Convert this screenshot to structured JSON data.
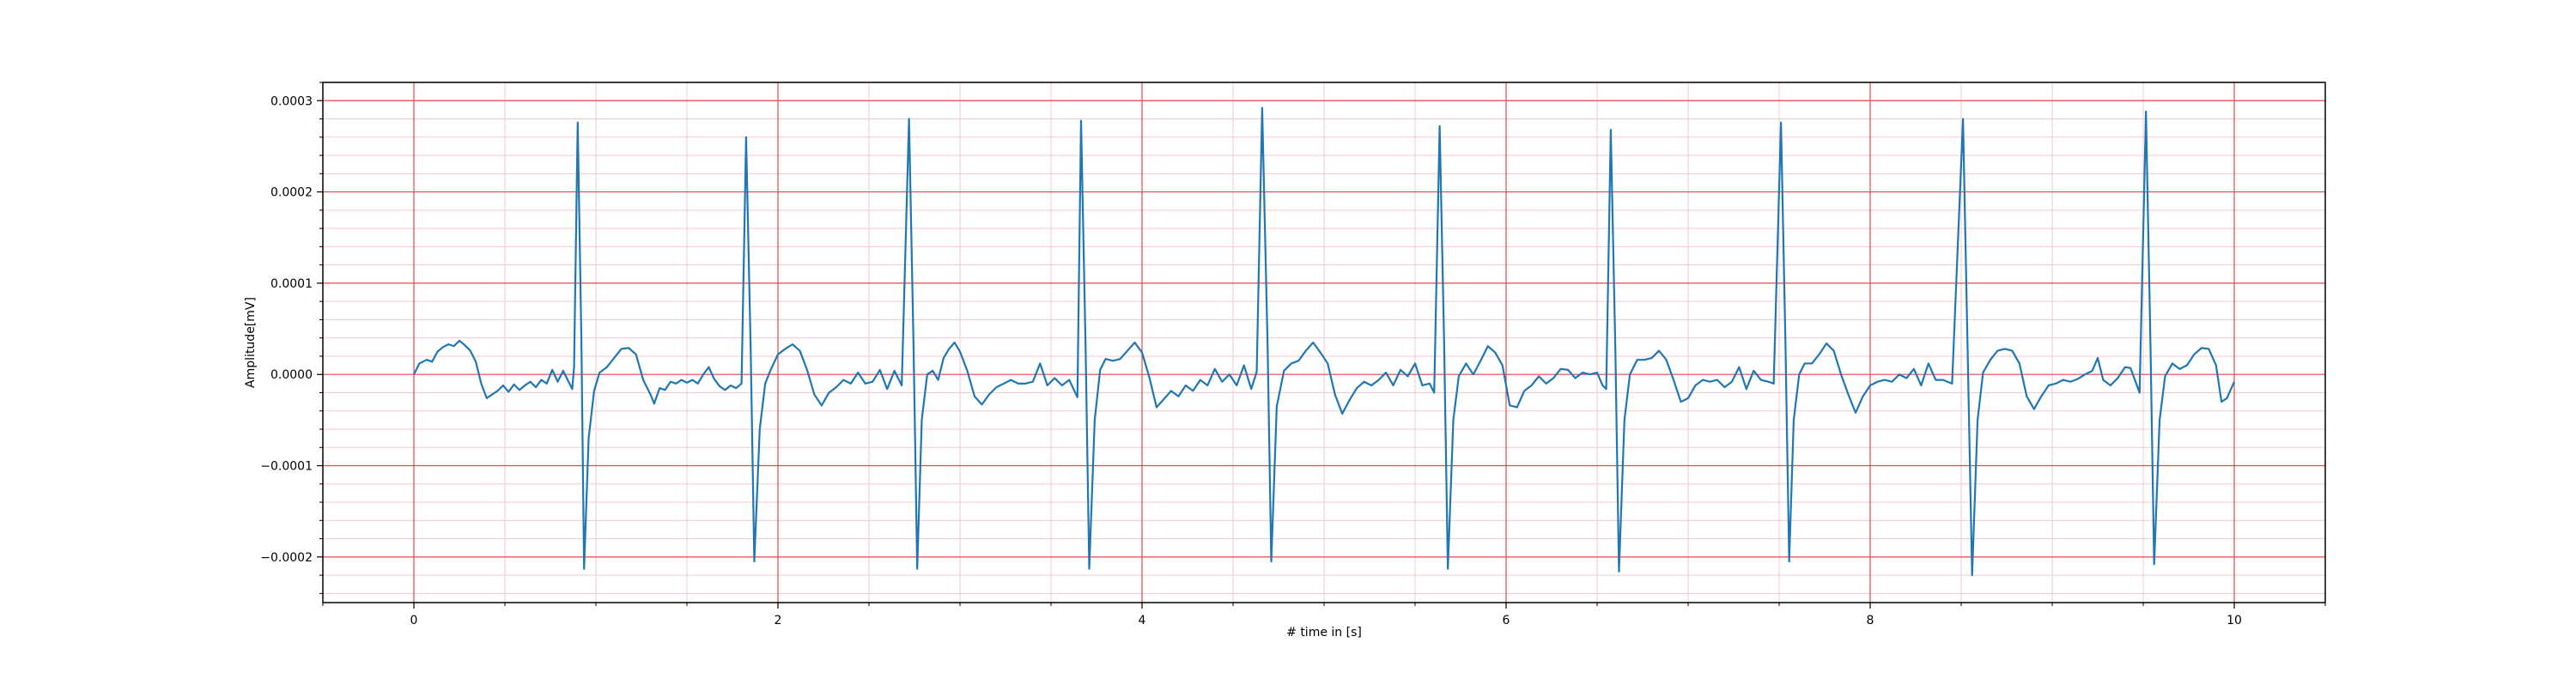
{
  "chart_data": {
    "type": "line",
    "title": "",
    "xlabel": "# time in [s]",
    "ylabel": "Amplitude[mV]",
    "xlim": [
      -0.5,
      10.5
    ],
    "ylim": [
      -0.00025,
      0.00032
    ],
    "x_ticks": [
      0,
      2,
      4,
      6,
      8,
      10
    ],
    "x_tick_labels": [
      "0",
      "2",
      "4",
      "6",
      "8",
      "10"
    ],
    "y_ticks": [
      -0.0002,
      -0.0001,
      0.0,
      0.0001,
      0.0002,
      0.0003
    ],
    "y_tick_labels": [
      "−0.0002",
      "−0.0001",
      "0.0000",
      "0.0001",
      "0.0002",
      "0.0003"
    ],
    "grid": {
      "major": true,
      "minor": true,
      "major_color": "#e8464a",
      "minor_color": "#f6c9cf"
    },
    "legend": "none",
    "series": [
      {
        "color": "#1f77b4",
        "points": [
          [
            0.0,
            0.0
          ],
          [
            0.03,
            1.2e-05
          ],
          [
            0.07,
            1.6e-05
          ],
          [
            0.1,
            1.4e-05
          ],
          [
            0.13,
            2.5e-05
          ],
          [
            0.16,
            3e-05
          ],
          [
            0.19,
            3.3e-05
          ],
          [
            0.22,
            3.1e-05
          ],
          [
            0.25,
            3.7e-05
          ],
          [
            0.28,
            3.2e-05
          ],
          [
            0.31,
            2.6e-05
          ],
          [
            0.34,
            1.4e-05
          ],
          [
            0.37,
            -1e-05
          ],
          [
            0.4,
            -2.6e-05
          ],
          [
            0.43,
            -2.2e-05
          ],
          [
            0.46,
            -1.8e-05
          ],
          [
            0.49,
            -1.2e-05
          ],
          [
            0.52,
            -1.9e-05
          ],
          [
            0.55,
            -1.1e-05
          ],
          [
            0.58,
            -1.7e-05
          ],
          [
            0.61,
            -1.2e-05
          ],
          [
            0.64,
            -8e-06
          ],
          [
            0.67,
            -1.4e-05
          ],
          [
            0.7,
            -6e-06
          ],
          [
            0.73,
            -1e-05
          ],
          [
            0.76,
            5e-06
          ],
          [
            0.79,
            -8e-06
          ],
          [
            0.82,
            4e-06
          ],
          [
            0.85,
            -8e-06
          ],
          [
            0.87,
            -1.6e-05
          ],
          [
            0.88,
            8e-06
          ],
          [
            0.9,
            0.000276
          ],
          [
            0.92,
            4e-05
          ],
          [
            0.935,
            -0.000213
          ],
          [
            0.96,
            -7e-05
          ],
          [
            0.99,
            -1.8e-05
          ],
          [
            1.02,
            2e-06
          ],
          [
            1.06,
            8e-06
          ],
          [
            1.1,
            1.8e-05
          ],
          [
            1.14,
            2.8e-05
          ],
          [
            1.18,
            2.9e-05
          ],
          [
            1.22,
            2.2e-05
          ],
          [
            1.26,
            -6e-06
          ],
          [
            1.3,
            -2.2e-05
          ],
          [
            1.32,
            -3.2e-05
          ],
          [
            1.35,
            -1.5e-05
          ],
          [
            1.38,
            -1.7e-05
          ],
          [
            1.41,
            -8e-06
          ],
          [
            1.44,
            -1e-05
          ],
          [
            1.47,
            -6e-06
          ],
          [
            1.5,
            -9e-06
          ],
          [
            1.53,
            -6e-06
          ],
          [
            1.56,
            -1e-05
          ],
          [
            1.59,
            0.0
          ],
          [
            1.62,
            8e-06
          ],
          [
            1.65,
            -5e-06
          ],
          [
            1.68,
            -1.3e-05
          ],
          [
            1.71,
            -1.7e-05
          ],
          [
            1.74,
            -1.2e-05
          ],
          [
            1.77,
            -1.5e-05
          ],
          [
            1.8,
            -1e-05
          ],
          [
            1.825,
            0.00026
          ],
          [
            1.85,
            3e-05
          ],
          [
            1.87,
            -0.000205
          ],
          [
            1.9,
            -6e-05
          ],
          [
            1.93,
            -1e-05
          ],
          [
            1.96,
            5e-06
          ],
          [
            2.0,
            2.2e-05
          ],
          [
            2.04,
            2.8e-05
          ],
          [
            2.08,
            3.3e-05
          ],
          [
            2.12,
            2.6e-05
          ],
          [
            2.16,
            5e-06
          ],
          [
            2.2,
            -2.2e-05
          ],
          [
            2.24,
            -3.4e-05
          ],
          [
            2.28,
            -2e-05
          ],
          [
            2.32,
            -1.4e-05
          ],
          [
            2.36,
            -6e-06
          ],
          [
            2.4,
            -1e-05
          ],
          [
            2.44,
            2e-06
          ],
          [
            2.48,
            -1e-05
          ],
          [
            2.52,
            -8e-06
          ],
          [
            2.56,
            5e-06
          ],
          [
            2.6,
            -1.6e-05
          ],
          [
            2.64,
            4e-06
          ],
          [
            2.68,
            -1.2e-05
          ],
          [
            2.72,
            0.00028
          ],
          [
            2.745,
            3e-05
          ],
          [
            2.765,
            -0.000213
          ],
          [
            2.79,
            -5e-05
          ],
          [
            2.82,
            0.0
          ],
          [
            2.85,
            4e-06
          ],
          [
            2.88,
            -6e-06
          ],
          [
            2.91,
            1.8e-05
          ],
          [
            2.94,
            2.8e-05
          ],
          [
            2.97,
            3.5e-05
          ],
          [
            3.0,
            2.5e-05
          ],
          [
            3.04,
            4e-06
          ],
          [
            3.08,
            -2.4e-05
          ],
          [
            3.12,
            -3.3e-05
          ],
          [
            3.16,
            -2.2e-05
          ],
          [
            3.2,
            -1.4e-05
          ],
          [
            3.24,
            -1e-05
          ],
          [
            3.28,
            -6e-06
          ],
          [
            3.32,
            -1e-05
          ],
          [
            3.36,
            -1e-05
          ],
          [
            3.4,
            -8e-06
          ],
          [
            3.44,
            1.2e-05
          ],
          [
            3.48,
            -1.2e-05
          ],
          [
            3.52,
            -4e-06
          ],
          [
            3.56,
            -1.2e-05
          ],
          [
            3.6,
            -6e-06
          ],
          [
            3.645,
            -2.5e-05
          ],
          [
            3.665,
            0.000278
          ],
          [
            3.69,
            3e-05
          ],
          [
            3.71,
            -0.000213
          ],
          [
            3.74,
            -5e-05
          ],
          [
            3.77,
            5e-06
          ],
          [
            3.8,
            1.7e-05
          ],
          [
            3.84,
            1.5e-05
          ],
          [
            3.88,
            1.7e-05
          ],
          [
            3.92,
            2.6e-05
          ],
          [
            3.96,
            3.5e-05
          ],
          [
            4.0,
            2.4e-05
          ],
          [
            4.04,
            -3e-06
          ],
          [
            4.08,
            -3.6e-05
          ],
          [
            4.12,
            -2.7e-05
          ],
          [
            4.16,
            -1.8e-05
          ],
          [
            4.2,
            -2.4e-05
          ],
          [
            4.24,
            -1.2e-05
          ],
          [
            4.28,
            -1.8e-05
          ],
          [
            4.32,
            -6e-06
          ],
          [
            4.36,
            -1.2e-05
          ],
          [
            4.4,
            6e-06
          ],
          [
            4.44,
            -8e-06
          ],
          [
            4.48,
            0.0
          ],
          [
            4.52,
            -1.2e-05
          ],
          [
            4.56,
            1e-05
          ],
          [
            4.6,
            -1.6e-05
          ],
          [
            4.63,
            3e-06
          ],
          [
            4.66,
            0.000292
          ],
          [
            4.69,
            3e-05
          ],
          [
            4.71,
            -0.000205
          ],
          [
            4.74,
            -3.5e-05
          ],
          [
            4.78,
            4e-06
          ],
          [
            4.82,
            1.2e-05
          ],
          [
            4.86,
            1.5e-05
          ],
          [
            4.9,
            2.6e-05
          ],
          [
            4.94,
            3.5e-05
          ],
          [
            4.98,
            2.4e-05
          ],
          [
            5.02,
            1.2e-05
          ],
          [
            5.06,
            -2.2e-05
          ],
          [
            5.1,
            -4.3e-05
          ],
          [
            5.14,
            -2.8e-05
          ],
          [
            5.18,
            -1.5e-05
          ],
          [
            5.22,
            -8e-06
          ],
          [
            5.26,
            -1.2e-05
          ],
          [
            5.3,
            -6e-06
          ],
          [
            5.34,
            2e-06
          ],
          [
            5.38,
            -1.2e-05
          ],
          [
            5.42,
            5e-06
          ],
          [
            5.46,
            -2e-06
          ],
          [
            5.5,
            1.2e-05
          ],
          [
            5.54,
            -1.2e-05
          ],
          [
            5.58,
            -1e-05
          ],
          [
            5.605,
            -2e-05
          ],
          [
            5.635,
            0.000272
          ],
          [
            5.66,
            3e-05
          ],
          [
            5.68,
            -0.000213
          ],
          [
            5.71,
            -5e-05
          ],
          [
            5.74,
            -2e-06
          ],
          [
            5.78,
            1.2e-05
          ],
          [
            5.82,
            0.0
          ],
          [
            5.86,
            1.5e-05
          ],
          [
            5.9,
            3.1e-05
          ],
          [
            5.94,
            2.4e-05
          ],
          [
            5.98,
            1e-05
          ],
          [
            6.02,
            -3.4e-05
          ],
          [
            6.06,
            -3.6e-05
          ],
          [
            6.1,
            -1.8e-05
          ],
          [
            6.14,
            -1.2e-05
          ],
          [
            6.18,
            -2e-06
          ],
          [
            6.22,
            -1e-05
          ],
          [
            6.26,
            -4e-06
          ],
          [
            6.3,
            6e-06
          ],
          [
            6.34,
            5e-06
          ],
          [
            6.38,
            -4e-06
          ],
          [
            6.42,
            2e-06
          ],
          [
            6.46,
            0.0
          ],
          [
            6.5,
            2e-06
          ],
          [
            6.53,
            -1.2e-05
          ],
          [
            6.55,
            -1.6e-05
          ],
          [
            6.575,
            0.000268
          ],
          [
            6.6,
            3e-05
          ],
          [
            6.62,
            -0.000216
          ],
          [
            6.65,
            -5e-05
          ],
          [
            6.68,
            0.0
          ],
          [
            6.72,
            1.6e-05
          ],
          [
            6.76,
            1.6e-05
          ],
          [
            6.8,
            1.8e-05
          ],
          [
            6.84,
            2.6e-05
          ],
          [
            6.88,
            1.6e-05
          ],
          [
            6.92,
            -6e-06
          ],
          [
            6.96,
            -3e-05
          ],
          [
            7.0,
            -2.6e-05
          ],
          [
            7.04,
            -1.2e-05
          ],
          [
            7.08,
            -6e-06
          ],
          [
            7.12,
            -8e-06
          ],
          [
            7.16,
            -6e-06
          ],
          [
            7.2,
            -1.4e-05
          ],
          [
            7.24,
            -8e-06
          ],
          [
            7.28,
            8e-06
          ],
          [
            7.32,
            -1.6e-05
          ],
          [
            7.36,
            4e-06
          ],
          [
            7.4,
            -6e-06
          ],
          [
            7.44,
            -8e-06
          ],
          [
            7.47,
            -1e-05
          ],
          [
            7.51,
            0.000276
          ],
          [
            7.535,
            3e-05
          ],
          [
            7.555,
            -0.000205
          ],
          [
            7.58,
            -5e-05
          ],
          [
            7.61,
            0.0
          ],
          [
            7.64,
            1.2e-05
          ],
          [
            7.68,
            1.2e-05
          ],
          [
            7.72,
            2.2e-05
          ],
          [
            7.76,
            3.4e-05
          ],
          [
            7.8,
            2.6e-05
          ],
          [
            7.84,
            0.0
          ],
          [
            7.88,
            -2.2e-05
          ],
          [
            7.92,
            -4.2e-05
          ],
          [
            7.96,
            -2.4e-05
          ],
          [
            8.0,
            -1.2e-05
          ],
          [
            8.04,
            -8e-06
          ],
          [
            8.08,
            -6e-06
          ],
          [
            8.12,
            -8e-06
          ],
          [
            8.16,
            0.0
          ],
          [
            8.2,
            -4e-06
          ],
          [
            8.24,
            6e-06
          ],
          [
            8.28,
            -1.2e-05
          ],
          [
            8.32,
            1.2e-05
          ],
          [
            8.36,
            -6e-06
          ],
          [
            8.4,
            -6e-06
          ],
          [
            8.45,
            -1e-05
          ],
          [
            8.51,
            0.00028
          ],
          [
            8.535,
            3e-05
          ],
          [
            8.56,
            -0.00022
          ],
          [
            8.59,
            -5e-05
          ],
          [
            8.62,
            2e-06
          ],
          [
            8.66,
            1.6e-05
          ],
          [
            8.7,
            2.6e-05
          ],
          [
            8.74,
            2.8e-05
          ],
          [
            8.78,
            2.6e-05
          ],
          [
            8.82,
            1.2e-05
          ],
          [
            8.86,
            -2.4e-05
          ],
          [
            8.9,
            -3.8e-05
          ],
          [
            8.94,
            -2.4e-05
          ],
          [
            8.98,
            -1.2e-05
          ],
          [
            9.02,
            -1e-05
          ],
          [
            9.06,
            -6e-06
          ],
          [
            9.1,
            -8e-06
          ],
          [
            9.14,
            -5e-06
          ],
          [
            9.18,
            0.0
          ],
          [
            9.22,
            4e-06
          ],
          [
            9.25,
            1.8e-05
          ],
          [
            9.28,
            -6e-06
          ],
          [
            9.32,
            -1.2e-05
          ],
          [
            9.36,
            -4e-06
          ],
          [
            9.4,
            8e-06
          ],
          [
            9.43,
            7e-06
          ],
          [
            9.48,
            -2e-05
          ],
          [
            9.515,
            0.000288
          ],
          [
            9.54,
            3e-05
          ],
          [
            9.56,
            -0.000208
          ],
          [
            9.59,
            -5e-05
          ],
          [
            9.62,
            -2e-06
          ],
          [
            9.66,
            1.2e-05
          ],
          [
            9.7,
            6e-06
          ],
          [
            9.74,
            1e-05
          ],
          [
            9.78,
            2.2e-05
          ],
          [
            9.82,
            2.9e-05
          ],
          [
            9.86,
            2.8e-05
          ],
          [
            9.9,
            1e-05
          ],
          [
            9.93,
            -3e-05
          ],
          [
            9.96,
            -2.6e-05
          ],
          [
            10.0,
            -8e-06
          ]
        ]
      }
    ]
  }
}
